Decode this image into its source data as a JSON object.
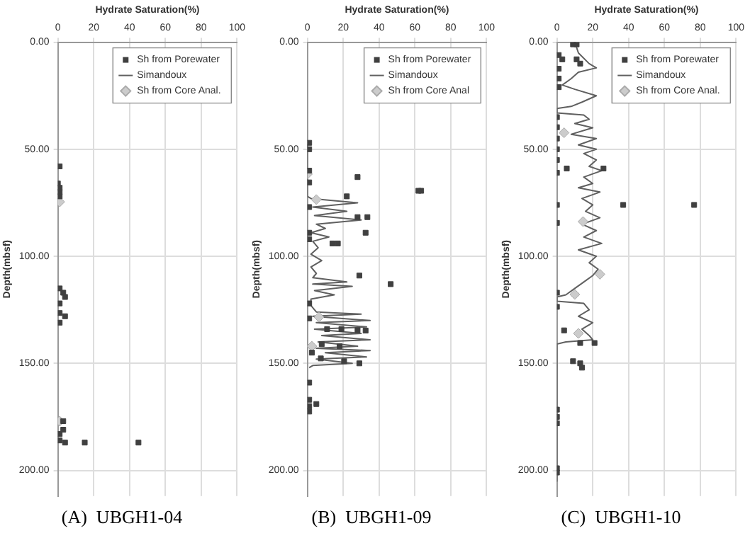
{
  "chart_data": [
    {
      "type": "scatter",
      "title": "(A)  UBGH1-04",
      "xlabel": "Hydrate Saturation(%)",
      "ylabel": "Depth(mbsf)",
      "xlim": [
        0,
        100
      ],
      "xticks": [
        0,
        20,
        40,
        60,
        80,
        100
      ],
      "ylim": [
        212,
        0
      ],
      "yticks": [
        {
          "value": 0,
          "label": "0.00"
        },
        {
          "value": 50,
          "label": "50.00"
        },
        {
          "value": 100,
          "label": "100.00"
        },
        {
          "value": 150,
          "label": "150.00"
        },
        {
          "value": 200,
          "label": "200.00"
        }
      ],
      "grid": true,
      "legend": "top right",
      "series": [
        {
          "name": "Sh from Porewater",
          "type": "scatter",
          "marker": "square",
          "color": "#404040",
          "x": [
            1,
            0,
            1,
            1,
            1,
            1,
            3,
            4,
            1,
            1,
            4,
            1,
            3,
            3,
            1,
            1,
            4,
            15,
            45
          ],
          "values": [
            58,
            66,
            68,
            70,
            72,
            115,
            117,
            119,
            122,
            126.5,
            128,
            131,
            177,
            181,
            183,
            186,
            187,
            187,
            187
          ]
        },
        {
          "name": "Simandoux",
          "type": "line",
          "marker": "none",
          "color": "#606060"
        },
        {
          "name": "Sh from Core Anal.",
          "type": "scatter",
          "marker": "diamond",
          "color": "#cccccc",
          "x": [
            1,
            1
          ],
          "values": [
            74.6,
            177
          ]
        }
      ]
    },
    {
      "type": "scatter",
      "title": "(B)  UBGH1-09",
      "xlabel": "Hydrate Saturation(%)",
      "ylabel": "Depth(mbsf)",
      "xlim": [
        0,
        100
      ],
      "xticks": [
        0,
        20,
        40,
        60,
        80,
        100
      ],
      "ylim": [
        212,
        0
      ],
      "yticks": [
        {
          "value": 0,
          "label": "0.00"
        },
        {
          "value": 50,
          "label": "50.00"
        },
        {
          "value": 100,
          "label": "100.00"
        },
        {
          "value": 150,
          "label": "150.00"
        },
        {
          "value": 200,
          "label": "200.00"
        }
      ],
      "grid": true,
      "legend": "top right",
      "series": [
        {
          "name": "Sh from Porewater",
          "type": "scatter",
          "marker": "square",
          "color": "#404040",
          "x": [
            1,
            1,
            1,
            1,
            28,
            62,
            63.5,
            22,
            1,
            28,
            33.5,
            32.5,
            1,
            14,
            17,
            1,
            29,
            46.5,
            1,
            1,
            11,
            19,
            28,
            32.5,
            8,
            18,
            7.5,
            2.5,
            20.5,
            29,
            1,
            1,
            5,
            1,
            1
          ],
          "values": [
            47,
            50,
            60,
            65.5,
            63,
            69.4,
            69.4,
            72,
            77,
            81.7,
            81.7,
            89,
            89,
            94,
            94,
            92,
            109,
            113,
            122,
            129,
            134,
            134,
            134.5,
            134.7,
            141,
            142,
            147.7,
            145,
            149,
            150,
            159,
            167,
            169,
            170,
            172.5
          ]
        },
        {
          "name": "Simandoux",
          "type": "line",
          "marker": "none",
          "color": "#606060",
          "x": [
            0,
            0,
            2,
            28,
            3,
            22,
            4,
            30,
            5,
            10,
            2,
            12,
            3,
            6,
            2,
            8,
            2,
            5,
            3,
            22,
            3,
            25,
            4,
            15,
            2,
            2,
            5,
            30,
            3,
            35,
            5,
            33,
            4,
            30,
            8,
            35,
            6,
            28,
            5,
            35,
            10,
            33,
            5,
            25,
            3,
            1
          ],
          "values": [
            48,
            72,
            73,
            75,
            77,
            79,
            81,
            83,
            85,
            87,
            89,
            91,
            93,
            96,
            99,
            102,
            105,
            108,
            110,
            112,
            113,
            114,
            116,
            118,
            120,
            123,
            126,
            127,
            128,
            130,
            131,
            133,
            134,
            136,
            137,
            139,
            140,
            142,
            143,
            144,
            145,
            147,
            148,
            150,
            151,
            152
          ]
        },
        {
          "name": "Sh from Core Anal",
          "type": "scatter",
          "marker": "diamond",
          "color": "#cccccc",
          "x": [
            0,
            5,
            6.5,
            2.5
          ],
          "values": [
            61.6,
            73.5,
            128.4,
            142
          ]
        }
      ]
    },
    {
      "type": "scatter",
      "title": "(C)  UBGH1-10",
      "xlabel": "Hydrate Saturation(%)",
      "ylabel": "Depth(mbsf)",
      "xlim": [
        0,
        100
      ],
      "xticks": [
        0,
        20,
        40,
        60,
        80,
        100
      ],
      "ylim": [
        212,
        0
      ],
      "yticks": [
        {
          "value": 0,
          "label": "0.00"
        },
        {
          "value": 50,
          "label": "50.00"
        },
        {
          "value": 100,
          "label": "100.00"
        },
        {
          "value": 150,
          "label": "150.00"
        },
        {
          "value": 200,
          "label": "200.00"
        }
      ],
      "grid": true,
      "legend": "top right",
      "series": [
        {
          "name": "Sh from Porewater",
          "type": "scatter",
          "marker": "square",
          "color": "#404040",
          "x": [
            9,
            11,
            1,
            3,
            11,
            13,
            1,
            1,
            1,
            0,
            0,
            0,
            0,
            0,
            5.5,
            26,
            0,
            0,
            37,
            76.6,
            0,
            0,
            0,
            4,
            13,
            21,
            9,
            13,
            14,
            0,
            0,
            0,
            0,
            0
          ],
          "values": [
            1,
            1,
            6,
            8,
            8,
            10,
            12.4,
            17,
            21,
            35,
            39.7,
            45,
            50,
            55,
            59,
            59,
            61,
            76,
            76,
            76,
            84.4,
            117,
            123.6,
            134.6,
            140.5,
            140.5,
            149,
            150,
            152,
            171.6,
            175,
            178,
            199,
            201
          ]
        },
        {
          "name": "Simandoux",
          "type": "line",
          "marker": "none",
          "color": "#606060",
          "x": [
            10,
            12,
            18,
            22,
            12,
            8,
            3,
            10,
            22,
            14,
            8,
            0,
            0,
            15,
            18,
            10,
            20,
            8,
            22,
            12,
            22,
            15,
            22,
            18,
            25,
            15,
            20,
            12,
            24,
            14,
            20,
            16,
            24,
            14,
            22,
            15,
            25,
            12,
            22,
            18,
            23,
            20,
            15,
            10,
            5,
            0,
            0,
            15,
            18,
            12,
            20,
            14,
            18,
            20,
            5,
            0,
            0
          ],
          "values": [
            0,
            5,
            10,
            12,
            14,
            17,
            20,
            22,
            25,
            28,
            30,
            31,
            33,
            34,
            36,
            38,
            40,
            43,
            45,
            48,
            50,
            52,
            55,
            58,
            60,
            63,
            66,
            68,
            70,
            73,
            76,
            79,
            82,
            85,
            88,
            91,
            94,
            97,
            100,
            103,
            106,
            109,
            112,
            115,
            118,
            119,
            121,
            122,
            125,
            128,
            131,
            134,
            137,
            139,
            140,
            141,
            205
          ]
        },
        {
          "name": "Sh from Core Anal.",
          "type": "scatter",
          "marker": "diamond",
          "color": "#cccccc",
          "x": [
            4,
            14.6,
            24,
            10,
            12
          ],
          "values": [
            42.3,
            83.8,
            108.4,
            117.8,
            136
          ]
        }
      ]
    }
  ]
}
